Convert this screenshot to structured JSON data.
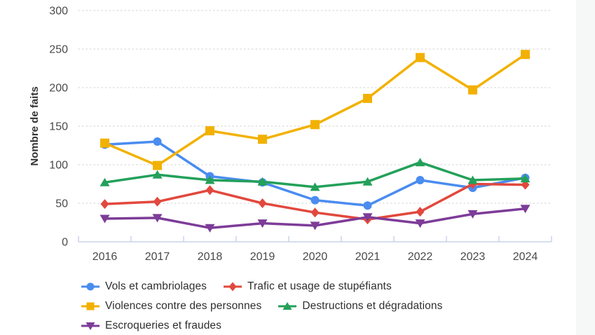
{
  "chart_data": {
    "type": "line",
    "title": "",
    "xlabel": "",
    "ylabel": "Nombre de faits",
    "categories": [
      "2016",
      "2017",
      "2018",
      "2019",
      "2020",
      "2021",
      "2022",
      "2023",
      "2024"
    ],
    "y_ticks": [
      0,
      50,
      100,
      150,
      200,
      250,
      300
    ],
    "ylim": [
      0,
      300
    ],
    "grid": "horizontal-dotted",
    "legend_position": "bottom-left",
    "series": [
      {
        "name": "Vols et cambriolages",
        "color": "#4A8CF0",
        "marker": "circle",
        "values": [
          126,
          130,
          85,
          77,
          54,
          47,
          80,
          70,
          83
        ]
      },
      {
        "name": "Trafic et usage de stupéfiants",
        "color": "#E2483D",
        "marker": "diamond",
        "values": [
          49,
          52,
          67,
          50,
          38,
          29,
          39,
          75,
          74
        ]
      },
      {
        "name": "Violences contre des personnes",
        "color": "#F2B100",
        "marker": "square",
        "values": [
          128,
          99,
          144,
          133,
          152,
          186,
          239,
          197,
          243
        ]
      },
      {
        "name": "Destructions et dégradations",
        "color": "#23A05A",
        "marker": "triangle-up",
        "values": [
          77,
          87,
          80,
          78,
          71,
          78,
          103,
          80,
          82
        ]
      },
      {
        "name": "Escroqueries et fraudes",
        "color": "#7D3C98",
        "marker": "triangle-down",
        "values": [
          30,
          31,
          18,
          24,
          21,
          32,
          24,
          36,
          43
        ]
      }
    ]
  },
  "axis": {
    "y_title": "Nombre de faits"
  },
  "colors": {
    "background": "#ffffff",
    "right_strip": "#f5f8f6",
    "gridline": "#d9d9d9",
    "axis_line": "#c9d4e8",
    "tick_text": "#4a4a4a",
    "axis_title_text": "#333333",
    "legend_text": "#2f2f2f"
  }
}
